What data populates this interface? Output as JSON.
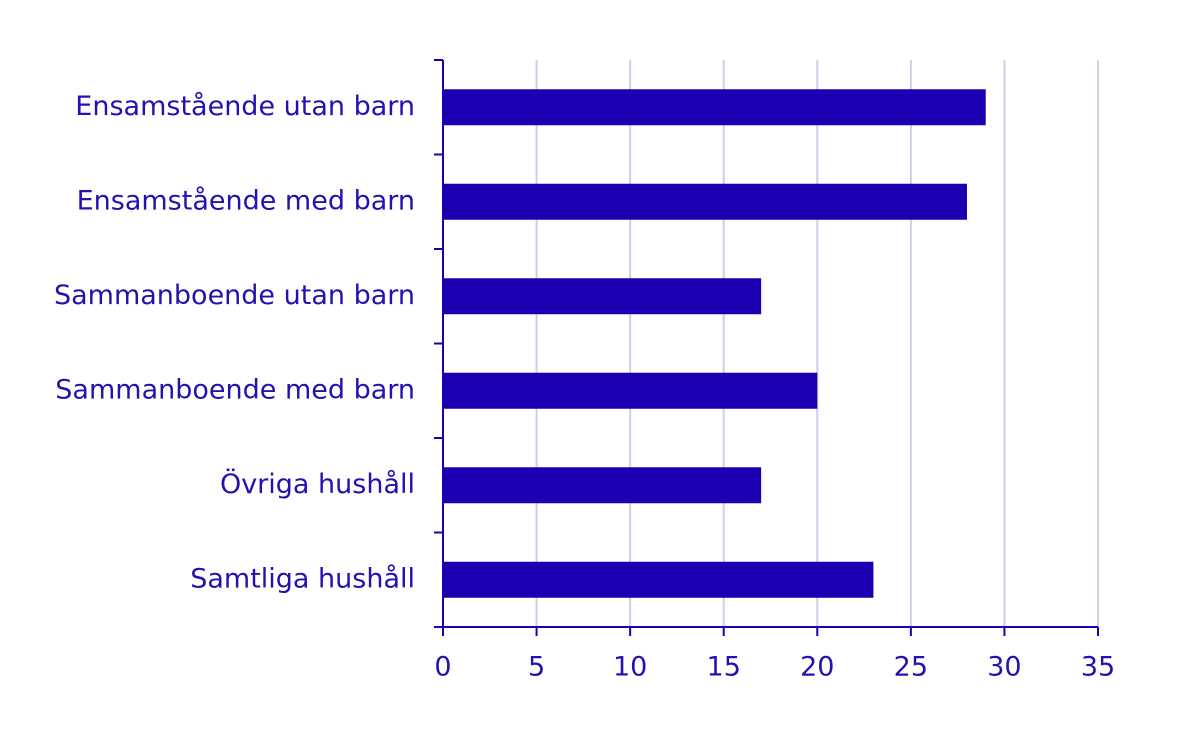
{
  "chart_data": {
    "type": "barh",
    "categories": [
      "Ensamstående utan barn",
      "Ensamstående med barn",
      "Sammanboende utan barn",
      "Sammanboende med barn",
      "Övriga hushåll",
      "Samtliga hushåll"
    ],
    "values": [
      29,
      28,
      17,
      20,
      17,
      23
    ],
    "color": "#1a00b0",
    "xlim": [
      0,
      35
    ],
    "xticks": [
      0,
      5,
      10,
      15,
      20,
      25,
      30,
      35
    ],
    "grid": true
  }
}
